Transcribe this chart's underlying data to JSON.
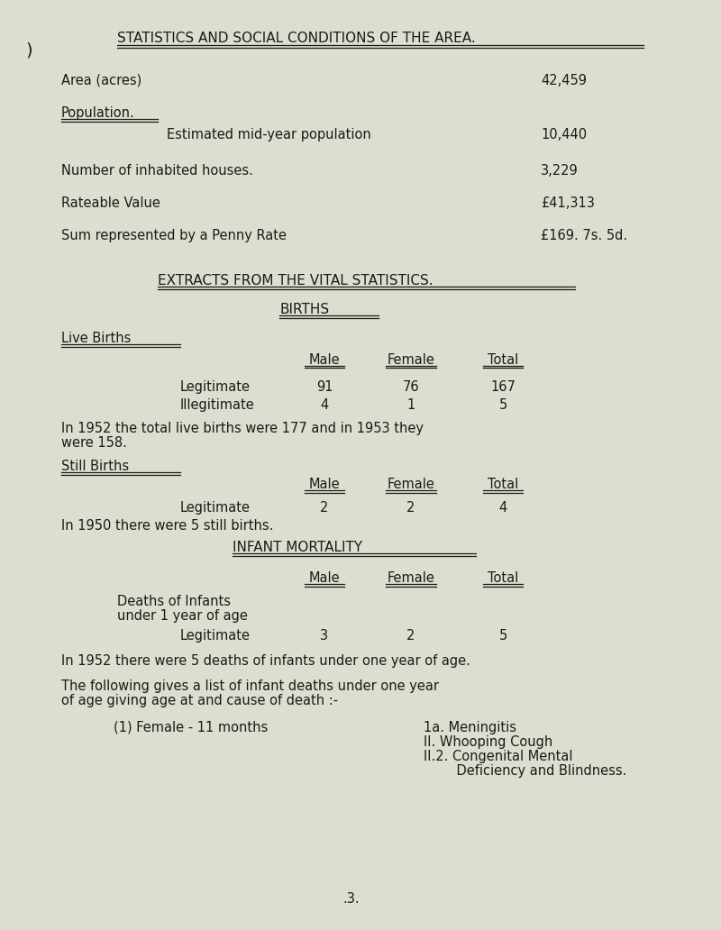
{
  "bg_color": "#deded0",
  "text_color": "#1a1a1a",
  "title": "STATISTICS AND SOCIAL CONDITIONS OF THE AREA.",
  "area_label": "Area (acres)",
  "area_value": "42,459",
  "pop_label": "Population.",
  "pop_sub_label": "Estimated mid-year population",
  "pop_value": "10,440",
  "houses_label": "Number of inhabited houses.",
  "houses_value": "3,229",
  "rateable_label": "Rateable Value",
  "rateable_value": "£41,313",
  "penny_label": "Sum represented by a Penny Rate",
  "penny_value": "£169. 7s. 5d.",
  "section2_title": "EXTRACTS FROM THE VITAL STATISTICS.",
  "births_title": "BIRTHS",
  "live_births_title": "Live Births",
  "col_headers": [
    "Male",
    "Female",
    "Total"
  ],
  "live_leg_male": "91",
  "live_leg_female": "76",
  "live_leg_total": "167",
  "live_illeg_male": "4",
  "live_illeg_female": "1",
  "live_illeg_total": "5",
  "live_note1": "In 1952 the total live births were 177 and in 1953 they",
  "live_note2": "were 158.",
  "still_births_title": "Still Births",
  "still_leg_male": "2",
  "still_leg_female": "2",
  "still_leg_total": "4",
  "still_note": "In 1950 there were 5 still births.",
  "infant_title": "INFANT MORTALITY",
  "infant_label1": "Deaths of Infants",
  "infant_label2": "under 1 year of age",
  "infant_leg_male": "3",
  "infant_leg_female": "2",
  "infant_leg_total": "5",
  "infant_note1": "In 1952 there were 5 deaths of infants under one year of age.",
  "infant_note2a": "The following gives a list of infant deaths under one year",
  "infant_note2b": "of age giving age at and cause of death :-",
  "detail_entry": "(1) Female - 11 months",
  "detail_cause1": "1a. Meningitis",
  "detail_cause2": "II. Whooping Cough",
  "detail_cause3": "II.2. Congenital Mental",
  "detail_cause4": "    Deficiency and Blindness.",
  "page_num": ".3."
}
